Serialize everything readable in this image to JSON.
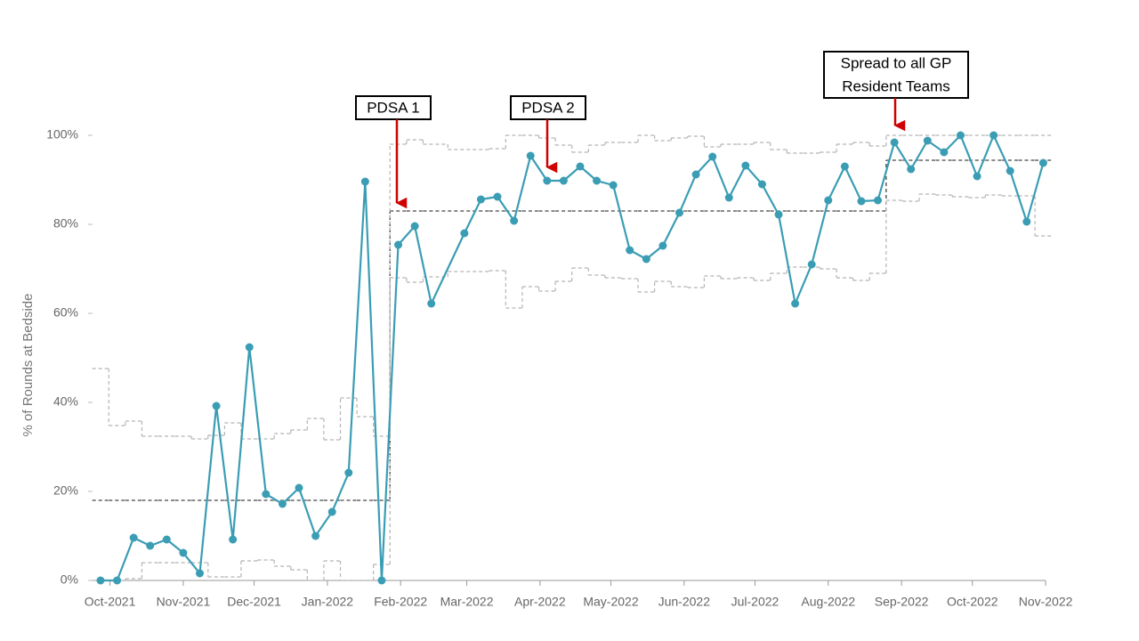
{
  "chart_data": {
    "type": "line",
    "y_axis_label": "% of Rounds at Bedside",
    "x": [
      0,
      1,
      2,
      3,
      4,
      5,
      6,
      7,
      8,
      9,
      10,
      11,
      12,
      13,
      14,
      15,
      16,
      17,
      18,
      19,
      20,
      22,
      23,
      24,
      25,
      26,
      27,
      28,
      29,
      30,
      31,
      32,
      33,
      34,
      35,
      36,
      37,
      38,
      39,
      40,
      41,
      42,
      43,
      44,
      45,
      46,
      47,
      48,
      49,
      50,
      51,
      52,
      53,
      54,
      55,
      56,
      57
    ],
    "values": [
      0,
      0,
      9.6,
      7.8,
      9.2,
      6.2,
      1.6,
      39.2,
      9.2,
      52.4,
      19.4,
      17.2,
      20.8,
      10,
      15.4,
      24.2,
      89.6,
      0,
      75.4,
      79.6,
      62.2,
      78,
      85.6,
      86.2,
      80.8,
      95.4,
      89.8,
      89.8,
      93,
      89.8,
      88.8,
      74.2,
      72.2,
      75.2,
      82.6,
      91.2,
      95.2,
      86,
      93.2,
      89,
      82.2,
      62.2,
      71,
      85.4,
      93,
      85.2,
      85.4,
      98.4,
      92.4,
      98.8,
      96.2,
      100,
      90.8,
      100,
      92,
      80.6,
      93.8
    ],
    "color": "#3a9db4",
    "limits": {
      "center": [
        18,
        18,
        18,
        18,
        18,
        18,
        18,
        18,
        18,
        18,
        18,
        18,
        18,
        18,
        18,
        18,
        18,
        18,
        83,
        83,
        83,
        83,
        83,
        83,
        83,
        83,
        83,
        83,
        83,
        83,
        83,
        83,
        83,
        83,
        83,
        83,
        83,
        83,
        83,
        83,
        83,
        83,
        83,
        83,
        83,
        83,
        83,
        94.4,
        94.4,
        94.4,
        94.4,
        94.4,
        94.4,
        94.4,
        94.4,
        94.4,
        94.4
      ],
      "upper": [
        47.6,
        34.8,
        35.8,
        32.4,
        32.4,
        32.4,
        31.8,
        32.6,
        35.4,
        31.8,
        31.8,
        33,
        33.8,
        36.4,
        31.6,
        41,
        36.8,
        32.4,
        98,
        99,
        98,
        96.8,
        96.8,
        97,
        100,
        100,
        99.4,
        97.8,
        96.2,
        97.8,
        98.4,
        98.4,
        100,
        98.8,
        99.4,
        99.8,
        97.4,
        98,
        98,
        98.4,
        96.8,
        96,
        96,
        96.2,
        98,
        98.4,
        97.6,
        100,
        100,
        100,
        100,
        100,
        100,
        100,
        100,
        100,
        100
      ],
      "lower": [
        0,
        0,
        0.4,
        4,
        4,
        4,
        4,
        0.8,
        0.8,
        4.4,
        4.6,
        3.2,
        2.4,
        0,
        4.4,
        0,
        0,
        3.6,
        68,
        67,
        68.2,
        69.4,
        69.4,
        69.6,
        61.2,
        66,
        65,
        67.2,
        70.2,
        68.6,
        68,
        67.8,
        64.8,
        67.2,
        66,
        65.8,
        68.4,
        67.8,
        68,
        67.4,
        69,
        70.4,
        70.4,
        70,
        68,
        67.4,
        69,
        85.4,
        85.2,
        86.8,
        86.6,
        86.2,
        86,
        86.6,
        86.4,
        86.4,
        77.4
      ]
    },
    "xlim": [
      -0.43,
      57.14
    ],
    "xticks": [
      {
        "value": 0.571,
        "label": "Oct-2021"
      },
      {
        "value": 5,
        "label": "Nov-2021"
      },
      {
        "value": 9.286,
        "label": "Dec-2021"
      },
      {
        "value": 13.714,
        "label": "Jan-2022"
      },
      {
        "value": 18.143,
        "label": "Feb-2022"
      },
      {
        "value": 22.143,
        "label": "Mar-2022"
      },
      {
        "value": 26.571,
        "label": "Apr-2022"
      },
      {
        "value": 30.857,
        "label": "May-2022"
      },
      {
        "value": 35.286,
        "label": "Jun-2022"
      },
      {
        "value": 39.571,
        "label": "Jul-2022"
      },
      {
        "value": 44,
        "label": "Aug-2022"
      },
      {
        "value": 48.429,
        "label": "Sep-2022"
      },
      {
        "value": 52.714,
        "label": "Oct-2022"
      },
      {
        "value": 57.143,
        "label": "Nov-2022"
      }
    ],
    "ylim": [
      0,
      100
    ],
    "yticks": [
      {
        "value": 0,
        "label": "0%"
      },
      {
        "value": 20,
        "label": "20%"
      },
      {
        "value": 40,
        "label": "40%"
      },
      {
        "value": 60,
        "label": "60%"
      },
      {
        "value": 80,
        "label": "80%"
      },
      {
        "value": 100,
        "label": "100%"
      }
    ],
    "annotations": [
      {
        "lines": [
          "PDSA 1"
        ]
      },
      {
        "lines": [
          "PDSA 2"
        ]
      },
      {
        "lines": [
          "Spread to all GP",
          "Resident Teams"
        ]
      }
    ]
  }
}
